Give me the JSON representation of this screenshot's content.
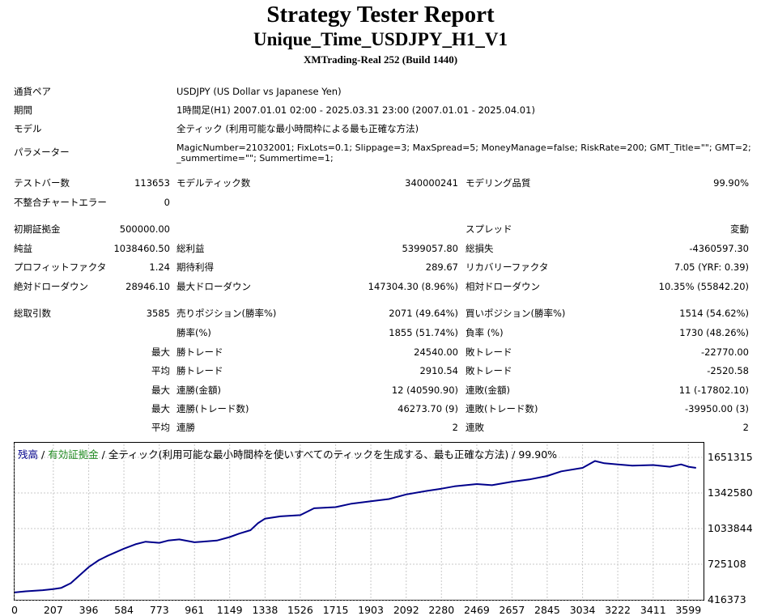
{
  "header": {
    "title": "Strategy Tester Report",
    "subtitle": "Unique_Time_USDJPY_H1_V1",
    "server": "XMTrading-Real 252 (Build 1440)"
  },
  "info": {
    "symbol_label": "通貨ペア",
    "symbol_value": "USDJPY (US Dollar vs Japanese Yen)",
    "period_label": "期間",
    "period_value": "1時間足(H1) 2007.01.01 02:00 - 2025.03.31 23:00 (2007.01.01 - 2025.04.01)",
    "model_label": "モデル",
    "model_value": "全ティック (利用可能な最小時間枠による最も正確な方法)",
    "params_label": "パラメーター",
    "params_line1": "MagicNumber=21032001; FixLots=0.1; Slippage=3; MaxSpread=5; MoneyManage=false; RiskRate=200; GMT_Title=\"\"; GMT=2;",
    "params_line2": "_summertime=\"\"; Summertime=1;"
  },
  "stats": {
    "bars_label": "テストバー数",
    "bars_value": "113653",
    "ticks_label": "モデルティック数",
    "ticks_value": "340000241",
    "quality_label": "モデリング品質",
    "quality_value": "99.90%",
    "mismatch_label": "不整合チャートエラー",
    "mismatch_value": "0",
    "deposit_label": "初期証拠金",
    "deposit_value": "500000.00",
    "spread_label": "スプレッド",
    "spread_value": "変動",
    "net_label": "純益",
    "net_value": "1038460.50",
    "gross_profit_label": "総利益",
    "gross_profit_value": "5399057.80",
    "gross_loss_label": "総損失",
    "gross_loss_value": "-4360597.30",
    "pf_label": "プロフィットファクタ",
    "pf_value": "1.24",
    "expected_label": "期待利得",
    "expected_value": "289.67",
    "recovery_label": "リカバリーファクタ",
    "recovery_value": "7.05 (YRF: 0.39)",
    "abs_dd_label": "絶対ドローダウン",
    "abs_dd_value": "28946.10",
    "max_dd_label": "最大ドローダウン",
    "max_dd_value": "147304.30 (8.96%)",
    "rel_dd_label": "相対ドローダウン",
    "rel_dd_value": "10.35% (55842.20)",
    "total_trades_label": "総取引数",
    "total_trades_value": "3585",
    "short_label": "売りポジション(勝率%)",
    "short_value": "2071 (49.64%)",
    "long_label": "買いポジション(勝率%)",
    "long_value": "1514 (54.62%)",
    "win_rate_label": "勝率(%)",
    "win_rate_value": "1855 (51.74%)",
    "loss_rate_label": "負率 (%)",
    "loss_rate_value": "1730 (48.26%)",
    "max_prefix": "最大",
    "avg_prefix": "平均",
    "largest_win_label": "勝トレード",
    "largest_win_value": "24540.00",
    "largest_loss_label": "敗トレード",
    "largest_loss_value": "-22770.00",
    "avg_win_label": "勝トレード",
    "avg_win_value": "2910.54",
    "avg_loss_label": "敗トレード",
    "avg_loss_value": "-2520.58",
    "max_consec_wins_label": "連勝(金額)",
    "max_consec_wins_value": "12 (40590.90)",
    "max_consec_losses_label": "連敗(金額)",
    "max_consec_losses_value": "11 (-17802.10)",
    "max_consec_profit_label": "連勝(トレード数)",
    "max_consec_profit_value": "46273.70 (9)",
    "max_consec_loss_label": "連敗(トレード数)",
    "max_consec_loss_value": "-39950.00 (3)",
    "avg_consec_wins_label": "連勝",
    "avg_consec_wins_value": "2",
    "avg_consec_losses_label": "連敗",
    "avg_consec_losses_value": "2"
  },
  "legend": {
    "balance": "残高",
    "sep1": " / ",
    "equity": "有効証拠金",
    "rest": " / 全ティック(利用可能な最小時間枠を使いすべてのティックを生成する、最も正確な方法) / 99.90%",
    "balance_color": "#00008b",
    "equity_color": "#228b22"
  },
  "chart_data": {
    "type": "line",
    "series": [
      {
        "name": "残高",
        "color": "#00008b",
        "x": [
          0,
          60,
          150,
          207,
          250,
          300,
          396,
          450,
          500,
          584,
          650,
          700,
          773,
          820,
          880,
          961,
          1000,
          1080,
          1149,
          1200,
          1260,
          1300,
          1338,
          1420,
          1526,
          1600,
          1715,
          1800,
          1903,
          2000,
          2092,
          2200,
          2280,
          2350,
          2469,
          2550,
          2657,
          2750,
          2845,
          2920,
          3034,
          3100,
          3150,
          3222,
          3300,
          3411,
          3500,
          3560,
          3599,
          3640
        ],
        "values": [
          480000,
          490000,
          500000,
          510000,
          520000,
          560000,
          700000,
          760000,
          800000,
          860000,
          900000,
          920000,
          910000,
          930000,
          940000,
          915000,
          920000,
          930000,
          960000,
          990000,
          1020000,
          1080000,
          1120000,
          1140000,
          1150000,
          1210000,
          1220000,
          1250000,
          1270000,
          1290000,
          1330000,
          1360000,
          1380000,
          1400000,
          1420000,
          1410000,
          1440000,
          1460000,
          1490000,
          1530000,
          1560000,
          1620000,
          1600000,
          1590000,
          1580000,
          1585000,
          1570000,
          1590000,
          1570000,
          1560000
        ]
      }
    ],
    "yticks": [
      "1651315",
      "1342580",
      "1033844",
      "725108",
      "416373"
    ],
    "ytick_values": [
      1651315,
      1342580,
      1033844,
      725108,
      416373
    ],
    "xticks": [
      "0",
      "207",
      "396",
      "584",
      "773",
      "961",
      "1149",
      "1338",
      "1526",
      "1715",
      "1903",
      "2092",
      "2280",
      "2469",
      "2657",
      "2845",
      "3034",
      "3222",
      "3411",
      "3599"
    ],
    "ylim": [
      416373,
      1651315
    ],
    "xlim": [
      0,
      3680
    ],
    "grid": true
  }
}
